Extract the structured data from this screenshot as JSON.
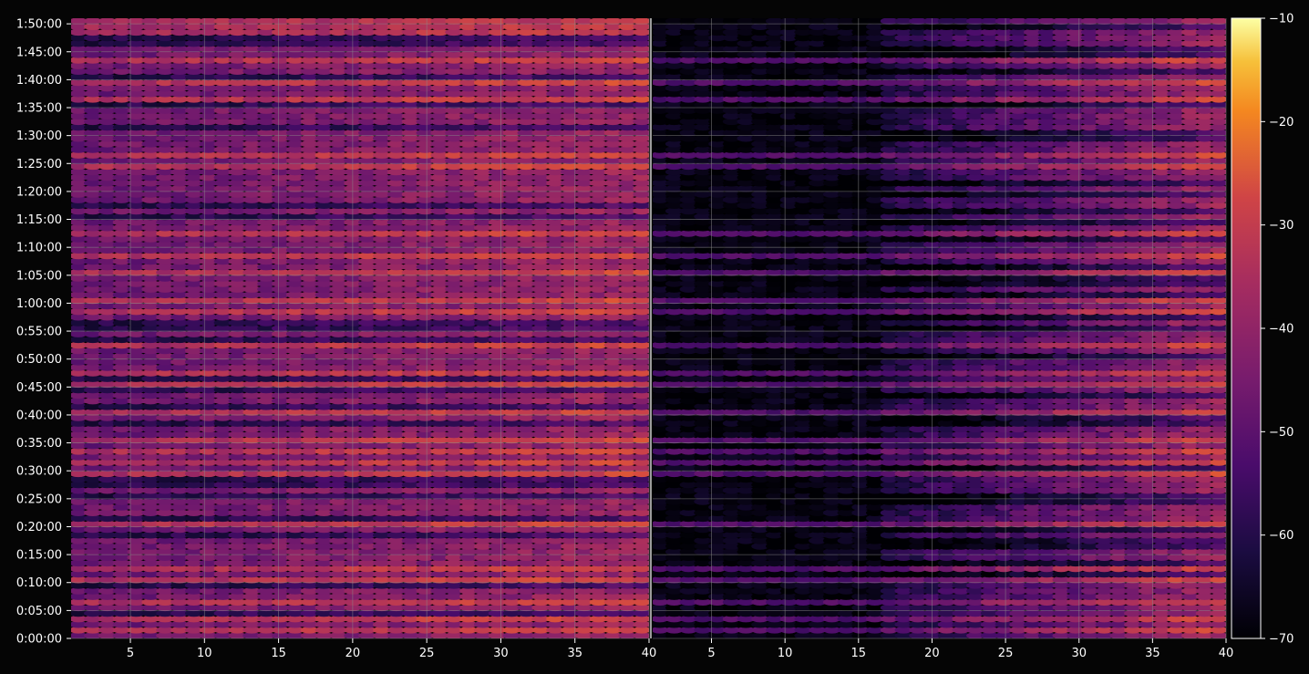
{
  "chart_data": [
    {
      "type": "heatmap",
      "panel": "left",
      "title": "",
      "xlabel": "",
      "ylabel": "",
      "xlim": [
        1,
        40
      ],
      "x_ticks": [
        5,
        10,
        15,
        20,
        25,
        30,
        35,
        40
      ],
      "x_tick_labels": [
        "5",
        "10",
        "15",
        "20",
        "25",
        "30",
        "35",
        "40"
      ],
      "ylim_seconds": [
        0,
        6660
      ],
      "y_ticks_seconds": [
        0,
        300,
        600,
        900,
        1200,
        1500,
        1800,
        2100,
        2400,
        2700,
        3000,
        3300,
        3600,
        3900,
        4200,
        4500,
        4800,
        5100,
        5400,
        5700,
        6000,
        6300,
        6600
      ],
      "y_tick_labels": [
        "0:00:00",
        "0:05:00",
        "0:10:00",
        "0:15:00",
        "0:20:00",
        "0:25:00",
        "0:30:00",
        "0:35:00",
        "0:40:00",
        "0:45:00",
        "0:50:00",
        "0:55:00",
        "1:00:00",
        "1:05:00",
        "1:10:00",
        "1:15:00",
        "1:20:00",
        "1:25:00",
        "1:30:00",
        "1:35:00",
        "1:40:00",
        "1:45:00",
        "1:50:00"
      ],
      "grid": true,
      "colormap": "inferno",
      "bright_rows_minutes": [
        1,
        3,
        6,
        10,
        12,
        20,
        29,
        31,
        33,
        35,
        40,
        45,
        47,
        52,
        58,
        60,
        65,
        68,
        72,
        84,
        86,
        96,
        99,
        103,
        111
      ]
    },
    {
      "type": "heatmap",
      "panel": "right",
      "title": "",
      "xlabel": "",
      "ylabel": "",
      "xlim": [
        1,
        40
      ],
      "x_ticks": [
        5,
        10,
        15,
        20,
        25,
        30,
        35,
        40
      ],
      "x_tick_labels": [
        "5",
        "10",
        "15",
        "20",
        "25",
        "30",
        "35",
        "40"
      ],
      "grid": true,
      "colormap": "inferno",
      "note_dark_region_x": [
        1,
        16
      ]
    }
  ],
  "colorbar": {
    "min": -70,
    "max": -10,
    "ticks": [
      -10,
      -20,
      -30,
      -40,
      -50,
      -60,
      -70
    ],
    "tick_labels": [
      "−10",
      "−20",
      "−30",
      "−40",
      "−50",
      "−60",
      "−70"
    ],
    "colormap": "inferno"
  },
  "colors": {
    "background": "#050505",
    "tick_text": "#ffffff",
    "grid": "#8a8a8a",
    "separator": "#ffffff"
  }
}
